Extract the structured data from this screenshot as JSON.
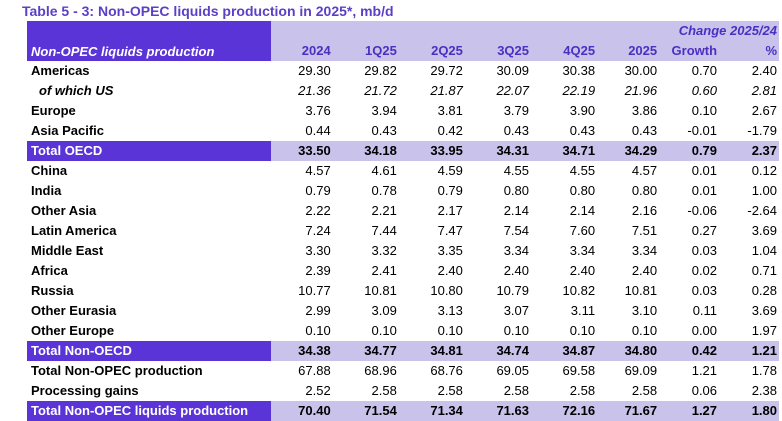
{
  "title": "Table 5 - 3: Non-OPEC liquids production in 2025*, mb/d",
  "header": {
    "change_label": "Change 2025/24",
    "label_column": "Non-OPEC liquids production",
    "columns": [
      "2024",
      "1Q25",
      "2Q25",
      "3Q25",
      "4Q25",
      "2025",
      "Growth",
      "%"
    ]
  },
  "rows": [
    {
      "label": "Americas",
      "values": [
        "29.30",
        "29.82",
        "29.72",
        "30.09",
        "30.38",
        "30.00",
        "0.70",
        "2.40"
      ]
    },
    {
      "label": "of which US",
      "values": [
        "21.36",
        "21.72",
        "21.87",
        "22.07",
        "22.19",
        "21.96",
        "0.60",
        "2.81"
      ]
    },
    {
      "label": "Europe",
      "values": [
        "3.76",
        "3.94",
        "3.81",
        "3.79",
        "3.90",
        "3.86",
        "0.10",
        "2.67"
      ]
    },
    {
      "label": "Asia Pacific",
      "values": [
        "0.44",
        "0.43",
        "0.42",
        "0.43",
        "0.43",
        "0.43",
        "-0.01",
        "-1.79"
      ]
    },
    {
      "label": "Total OECD",
      "values": [
        "33.50",
        "34.18",
        "33.95",
        "34.31",
        "34.71",
        "34.29",
        "0.79",
        "2.37"
      ]
    },
    {
      "label": "China",
      "values": [
        "4.57",
        "4.61",
        "4.59",
        "4.55",
        "4.55",
        "4.57",
        "0.01",
        "0.12"
      ]
    },
    {
      "label": "India",
      "values": [
        "0.79",
        "0.78",
        "0.79",
        "0.80",
        "0.80",
        "0.80",
        "0.01",
        "1.00"
      ]
    },
    {
      "label": "Other Asia",
      "values": [
        "2.22",
        "2.21",
        "2.17",
        "2.14",
        "2.14",
        "2.16",
        "-0.06",
        "-2.64"
      ]
    },
    {
      "label": "Latin America",
      "values": [
        "7.24",
        "7.44",
        "7.47",
        "7.54",
        "7.60",
        "7.51",
        "0.27",
        "3.69"
      ]
    },
    {
      "label": "Middle East",
      "values": [
        "3.30",
        "3.32",
        "3.35",
        "3.34",
        "3.34",
        "3.34",
        "0.03",
        "1.04"
      ]
    },
    {
      "label": "Africa",
      "values": [
        "2.39",
        "2.41",
        "2.40",
        "2.40",
        "2.40",
        "2.40",
        "0.02",
        "0.71"
      ]
    },
    {
      "label": "Russia",
      "values": [
        "10.77",
        "10.81",
        "10.80",
        "10.79",
        "10.82",
        "10.81",
        "0.03",
        "0.28"
      ]
    },
    {
      "label": "Other Eurasia",
      "values": [
        "2.99",
        "3.09",
        "3.13",
        "3.07",
        "3.11",
        "3.10",
        "0.11",
        "3.69"
      ]
    },
    {
      "label": "Other Europe",
      "values": [
        "0.10",
        "0.10",
        "0.10",
        "0.10",
        "0.10",
        "0.10",
        "0.00",
        "1.97"
      ]
    },
    {
      "label": "Total Non-OECD",
      "values": [
        "34.38",
        "34.77",
        "34.81",
        "34.74",
        "34.87",
        "34.80",
        "0.42",
        "1.21"
      ]
    },
    {
      "label": "Total Non-OPEC production",
      "values": [
        "67.88",
        "68.96",
        "68.76",
        "69.05",
        "69.58",
        "69.09",
        "1.21",
        "1.78"
      ]
    },
    {
      "label": "Processing gains",
      "values": [
        "2.52",
        "2.58",
        "2.58",
        "2.58",
        "2.58",
        "2.58",
        "0.06",
        "2.38"
      ]
    },
    {
      "label": "Total Non-OPEC liquids production",
      "values": [
        "70.40",
        "71.54",
        "71.34",
        "71.63",
        "72.16",
        "71.67",
        "1.27",
        "1.80"
      ]
    }
  ]
}
